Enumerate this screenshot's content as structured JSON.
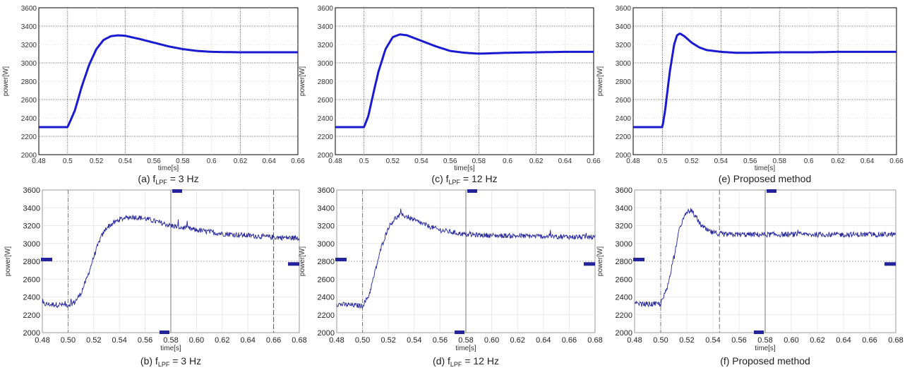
{
  "chart_data": [
    {
      "id": "a",
      "row": "sim",
      "type": "line",
      "caption_pre": "(a) f",
      "caption_sub": "LPF",
      "caption_post": " = 3 Hz",
      "xlabel": "time[s]",
      "ylabel": "power[W]",
      "xlim": [
        0.48,
        0.66
      ],
      "ylim": [
        2000,
        3600
      ],
      "xticks": [
        "0.48",
        "0.5",
        "0.52",
        "0.54",
        "0.56",
        "0.58",
        "0.6",
        "0.62",
        "0.64",
        "0.66"
      ],
      "yticks": [
        "2000",
        "2200",
        "2400",
        "2600",
        "2800",
        "3000",
        "3200",
        "3400",
        "3600"
      ],
      "series": [
        {
          "color": "#1a1ad0",
          "x": [
            0.48,
            0.5,
            0.505,
            0.51,
            0.515,
            0.52,
            0.525,
            0.53,
            0.535,
            0.54,
            0.55,
            0.56,
            0.57,
            0.58,
            0.59,
            0.6,
            0.62,
            0.64,
            0.66
          ],
          "y": [
            2300,
            2300,
            2480,
            2750,
            2980,
            3150,
            3250,
            3290,
            3300,
            3295,
            3260,
            3220,
            3180,
            3150,
            3130,
            3120,
            3115,
            3115,
            3115
          ]
        }
      ]
    },
    {
      "id": "c",
      "row": "sim",
      "type": "line",
      "caption_pre": "(c) f",
      "caption_sub": "LPF",
      "caption_post": " = 12 Hz",
      "xlabel": "time[s]",
      "ylabel": "power[W]",
      "xlim": [
        0.48,
        0.66
      ],
      "ylim": [
        2000,
        3600
      ],
      "xticks": [
        "0.48",
        "0.5",
        "0.52",
        "0.54",
        "0.56",
        "0.58",
        "0.6",
        "0.62",
        "0.64",
        "0.66"
      ],
      "yticks": [
        "2000",
        "2200",
        "2400",
        "2600",
        "2800",
        "3000",
        "3200",
        "3400",
        "3600"
      ],
      "series": [
        {
          "color": "#1a1ad0",
          "x": [
            0.48,
            0.5,
            0.503,
            0.507,
            0.51,
            0.515,
            0.52,
            0.525,
            0.53,
            0.54,
            0.55,
            0.56,
            0.57,
            0.58,
            0.59,
            0.6,
            0.62,
            0.64,
            0.66
          ],
          "y": [
            2300,
            2300,
            2420,
            2700,
            2900,
            3150,
            3280,
            3310,
            3300,
            3240,
            3180,
            3130,
            3110,
            3100,
            3105,
            3110,
            3115,
            3120,
            3120
          ]
        }
      ]
    },
    {
      "id": "e",
      "row": "sim",
      "type": "line",
      "caption_pre": "(e) Proposed method",
      "caption_sub": "",
      "caption_post": "",
      "xlabel": "time[s]",
      "ylabel": "power[W]",
      "xlim": [
        0.48,
        0.66
      ],
      "ylim": [
        2000,
        3600
      ],
      "xticks": [
        "0.48",
        "0.5",
        "0.52",
        "0.54",
        "0.56",
        "0.58",
        "0.6",
        "0.62",
        "0.64",
        "0.66"
      ],
      "yticks": [
        "2000",
        "2200",
        "2400",
        "2600",
        "2800",
        "3000",
        "3200",
        "3400",
        "3600"
      ],
      "series": [
        {
          "color": "#1a1ad0",
          "x": [
            0.48,
            0.5,
            0.502,
            0.505,
            0.508,
            0.51,
            0.512,
            0.515,
            0.52,
            0.525,
            0.53,
            0.54,
            0.55,
            0.56,
            0.58,
            0.6,
            0.62,
            0.64,
            0.66
          ],
          "y": [
            2300,
            2300,
            2500,
            2900,
            3200,
            3300,
            3320,
            3290,
            3220,
            3170,
            3140,
            3120,
            3110,
            3110,
            3115,
            3115,
            3120,
            3120,
            3120
          ]
        }
      ]
    },
    {
      "id": "b",
      "row": "exp",
      "type": "line",
      "caption_pre": "(b) f",
      "caption_sub": "LPF",
      "caption_post": " = 3 Hz",
      "xlabel": "time[s]",
      "ylabel": "power[W]",
      "xlim": [
        0.48,
        0.68
      ],
      "ylim": [
        2000,
        3600
      ],
      "xticks": [
        "0.48",
        "0.50",
        "0.52",
        "0.54",
        "0.56",
        "0.58",
        "0.60",
        "0.62",
        "0.64",
        "0.66",
        "0.68"
      ],
      "yticks": [
        "2000",
        "2200",
        "2400",
        "2600",
        "2800",
        "3000",
        "3200",
        "3400",
        "3600"
      ],
      "series": [
        {
          "color": "#23239c",
          "noise": 30,
          "x": [
            0.48,
            0.5,
            0.505,
            0.51,
            0.515,
            0.52,
            0.525,
            0.53,
            0.54,
            0.55,
            0.56,
            0.57,
            0.58,
            0.6,
            0.62,
            0.64,
            0.66,
            0.68
          ],
          "y": [
            2320,
            2310,
            2340,
            2440,
            2620,
            2850,
            3050,
            3180,
            3270,
            3300,
            3280,
            3240,
            3200,
            3150,
            3110,
            3090,
            3070,
            3060
          ]
        }
      ],
      "marks": [
        [
          0.5,
          null
        ],
        [
          0.58,
          null
        ],
        [
          0.66,
          null
        ]
      ]
    },
    {
      "id": "d",
      "row": "exp",
      "type": "line",
      "caption_pre": "(d) f",
      "caption_sub": "LPF",
      "caption_post": " = 12 Hz",
      "xlabel": "time[s]",
      "ylabel": "power[W]",
      "xlim": [
        0.48,
        0.68
      ],
      "ylim": [
        2000,
        3600
      ],
      "xticks": [
        "0.48",
        "0.50",
        "0.52",
        "0.54",
        "0.56",
        "0.58",
        "0.60",
        "0.62",
        "0.64",
        "0.66",
        "0.68"
      ],
      "yticks": [
        "2000",
        "2200",
        "2400",
        "2600",
        "2800",
        "3000",
        "3200",
        "3400",
        "3600"
      ],
      "series": [
        {
          "color": "#23239c",
          "noise": 28,
          "x": [
            0.48,
            0.5,
            0.505,
            0.51,
            0.515,
            0.52,
            0.525,
            0.53,
            0.535,
            0.54,
            0.55,
            0.56,
            0.58,
            0.6,
            0.62,
            0.64,
            0.66,
            0.68
          ],
          "y": [
            2320,
            2300,
            2420,
            2700,
            2980,
            3180,
            3280,
            3320,
            3300,
            3260,
            3200,
            3150,
            3100,
            3090,
            3085,
            3080,
            3075,
            3070
          ]
        }
      ],
      "marks": [
        [
          0.5,
          null
        ],
        [
          0.58,
          null
        ]
      ]
    },
    {
      "id": "f",
      "row": "exp",
      "type": "line",
      "caption_pre": "(f) Proposed method",
      "caption_sub": "",
      "caption_post": "",
      "xlabel": "time[s]",
      "ylabel": "power[W]",
      "xlim": [
        0.48,
        0.68
      ],
      "ylim": [
        2000,
        3600
      ],
      "xticks": [
        "0.48",
        "0.50",
        "0.52",
        "0.54",
        "0.56",
        "0.58",
        "0.60",
        "0.62",
        "0.64",
        "0.66",
        "0.68"
      ],
      "yticks": [
        "2000",
        "2200",
        "2400",
        "2600",
        "2800",
        "3000",
        "3200",
        "3400",
        "3600"
      ],
      "series": [
        {
          "color": "#23239c",
          "noise": 30,
          "x": [
            0.48,
            0.5,
            0.505,
            0.51,
            0.515,
            0.52,
            0.523,
            0.527,
            0.53,
            0.535,
            0.54,
            0.55,
            0.56,
            0.58,
            0.6,
            0.62,
            0.64,
            0.66,
            0.68
          ],
          "y": [
            2320,
            2320,
            2500,
            2850,
            3200,
            3350,
            3370,
            3300,
            3220,
            3150,
            3120,
            3100,
            3100,
            3100,
            3100,
            3100,
            3100,
            3100,
            3100
          ]
        }
      ],
      "marks": [
        [
          0.5,
          null
        ],
        [
          0.58,
          null
        ],
        [
          0.545,
          null
        ]
      ]
    }
  ]
}
